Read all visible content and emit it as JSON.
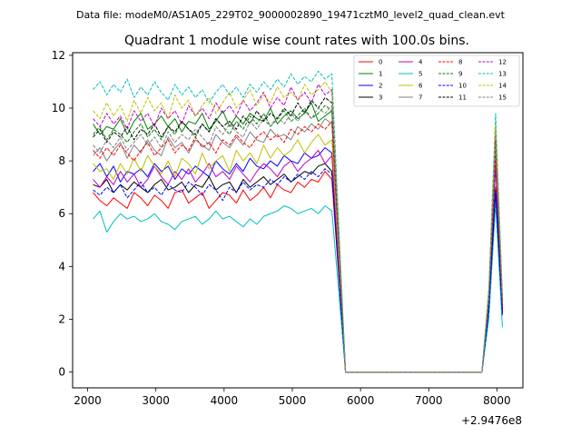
{
  "figure": {
    "suptitle": "Data file: modeM0/AS1A05_229T02_9000002890_19471cztM0_level2_quad_clean.evt"
  },
  "chart_data": {
    "type": "line",
    "title": "Quadrant 1 module wise count rates with 100.0s bins.",
    "xlabel": "",
    "ylabel": "",
    "x_offset_text": "+2.9476e8",
    "xlim": [
      1780,
      8380
    ],
    "ylim": [
      -0.6,
      12.1
    ],
    "x_ticks": [
      2000,
      3000,
      4000,
      5000,
      6000,
      7000,
      8000
    ],
    "y_ticks": [
      0,
      2,
      4,
      6,
      8,
      10,
      12
    ],
    "x_tick_labels": [
      "2000",
      "3000",
      "4000",
      "5000",
      "6000",
      "7000",
      "8000"
    ],
    "y_tick_labels": [
      "0",
      "2",
      "4",
      "6",
      "8",
      "10",
      "12"
    ],
    "grid": false,
    "legend_position": "upper right",
    "x_base": [
      2080,
      2180,
      2280,
      2380,
      2480,
      2580,
      2680,
      2780,
      2880,
      2980,
      3080,
      3180,
      3280,
      3380,
      3480,
      3580,
      3680,
      3780,
      3880,
      3980,
      4080,
      4180,
      4280,
      4380,
      4480,
      4580,
      4680,
      4780,
      4880,
      4980,
      5080,
      5180,
      5280,
      5380,
      5480,
      5580
    ],
    "x_gap": [
      5780,
      5880,
      5980,
      6080,
      6180,
      6280,
      6380,
      6480,
      6580,
      6680,
      6780,
      6880,
      6980,
      7080,
      7180,
      7280,
      7380,
      7480,
      7580,
      7680,
      7780
    ],
    "x_end": [
      7880,
      7980,
      8080
    ],
    "series": [
      {
        "name": "0",
        "color": "#ff0000",
        "dash": "solid",
        "values": [
          6.8,
          6.5,
          6.3,
          6.6,
          6.4,
          6.2,
          6.8,
          6.6,
          6.3,
          6.7,
          6.5,
          6.2,
          6.8,
          6.9,
          6.4,
          6.6,
          6.8,
          6.2,
          6.5,
          6.8,
          6.7,
          6.4,
          6.9,
          6.5,
          6.7,
          7.0,
          6.6,
          7.1,
          6.9,
          6.8,
          7.2,
          7.0,
          7.3,
          7.2,
          7.6,
          7.3
        ],
        "end": [
          2.5,
          7.0,
          2.3
        ]
      },
      {
        "name": "1",
        "color": "#008000",
        "dash": "solid",
        "values": [
          9.4,
          9.0,
          9.3,
          9.2,
          9.6,
          9.0,
          9.5,
          9.8,
          9.2,
          9.4,
          9.7,
          9.3,
          9.6,
          9.1,
          9.5,
          9.4,
          9.8,
          9.2,
          9.5,
          9.9,
          9.3,
          9.7,
          9.4,
          9.8,
          9.6,
          9.5,
          10.0,
          9.4,
          9.7,
          9.9,
          9.6,
          9.8,
          10.2,
          9.5,
          9.7,
          9.9
        ],
        "end": [
          2.8,
          8.5,
          2.6
        ]
      },
      {
        "name": "2",
        "color": "#0000ff",
        "dash": "solid",
        "values": [
          7.6,
          7.9,
          7.4,
          7.8,
          7.2,
          7.6,
          7.5,
          7.7,
          7.4,
          7.9,
          7.6,
          7.8,
          7.3,
          7.7,
          7.5,
          7.8,
          7.6,
          7.4,
          8.0,
          7.7,
          7.5,
          7.9,
          7.6,
          8.1,
          7.8,
          7.7,
          8.0,
          7.8,
          8.2,
          8.0,
          7.9,
          8.3,
          8.1,
          8.2,
          8.5,
          8.3
        ],
        "end": [
          2.6,
          7.8,
          2.4
        ]
      },
      {
        "name": "3",
        "color": "#000000",
        "dash": "solid",
        "values": [
          7.1,
          7.0,
          7.3,
          6.8,
          7.1,
          6.9,
          7.2,
          7.0,
          6.8,
          7.1,
          7.3,
          6.9,
          7.0,
          7.2,
          6.8,
          7.1,
          7.0,
          7.4,
          6.9,
          7.1,
          7.2,
          6.8,
          7.3,
          7.0,
          7.2,
          7.4,
          7.1,
          7.3,
          7.5,
          7.2,
          7.4,
          7.6,
          7.5,
          7.8,
          7.9,
          7.6
        ],
        "end": [
          2.4,
          6.9,
          2.2
        ]
      },
      {
        "name": "4",
        "color": "#bf00bf",
        "dash": "solid",
        "values": [
          7.3,
          7.0,
          7.4,
          7.1,
          7.6,
          7.2,
          7.5,
          7.0,
          7.3,
          7.8,
          7.4,
          7.1,
          7.6,
          7.3,
          7.7,
          7.2,
          7.5,
          7.9,
          7.4,
          7.6,
          7.3,
          7.8,
          7.5,
          7.2,
          7.6,
          7.9,
          7.7,
          7.4,
          7.8,
          8.0,
          7.6,
          7.9,
          8.1,
          8.4,
          7.9,
          8.2
        ],
        "end": [
          2.7,
          8.0,
          2.5
        ]
      },
      {
        "name": "5",
        "color": "#00bfbf",
        "dash": "solid",
        "values": [
          5.8,
          6.1,
          5.3,
          5.7,
          6.0,
          5.8,
          5.9,
          5.7,
          5.8,
          6.0,
          5.7,
          5.6,
          5.4,
          5.7,
          5.8,
          5.9,
          5.6,
          5.8,
          6.1,
          5.8,
          5.9,
          5.7,
          5.5,
          5.8,
          5.6,
          5.9,
          6.0,
          6.1,
          6.3,
          6.2,
          6.0,
          6.1,
          6.2,
          6.0,
          6.3,
          6.1
        ],
        "end": [
          2.0,
          6.4,
          1.7
        ]
      },
      {
        "name": "6",
        "color": "#bfbf00",
        "dash": "solid",
        "values": [
          7.9,
          7.6,
          7.7,
          7.3,
          7.9,
          7.5,
          8.1,
          7.6,
          8.2,
          7.8,
          7.5,
          8.0,
          7.4,
          8.1,
          7.9,
          7.5,
          8.3,
          7.7,
          8.0,
          8.2,
          7.6,
          8.4,
          8.0,
          8.3,
          7.9,
          8.6,
          8.1,
          8.5,
          8.2,
          8.4,
          8.8,
          8.3,
          8.7,
          9.0,
          8.6,
          8.8
        ],
        "end": [
          3.0,
          8.9,
          2.7
        ]
      },
      {
        "name": "7",
        "color": "#808080",
        "dash": "solid",
        "values": [
          8.2,
          8.5,
          8.0,
          8.4,
          8.7,
          8.1,
          8.6,
          8.3,
          8.8,
          8.4,
          8.2,
          8.9,
          8.5,
          8.7,
          8.3,
          8.8,
          8.6,
          8.4,
          9.0,
          8.7,
          8.5,
          8.9,
          8.6,
          9.1,
          8.8,
          8.7,
          9.2,
          8.9,
          9.0,
          8.8,
          9.3,
          9.1,
          9.4,
          9.2,
          9.6,
          9.4
        ],
        "end": [
          2.9,
          8.7,
          2.6
        ]
      },
      {
        "name": "8",
        "color": "#ff0000",
        "dash": "dashed",
        "values": [
          8.4,
          8.1,
          8.5,
          8.2,
          8.6,
          8.3,
          8.0,
          8.4,
          8.7,
          8.2,
          8.5,
          8.8,
          8.3,
          8.6,
          8.4,
          8.9,
          8.5,
          8.7,
          8.3,
          8.8,
          8.6,
          9.0,
          8.7,
          8.5,
          8.9,
          9.1,
          8.8,
          9.0,
          8.7,
          9.2,
          9.0,
          9.3,
          9.1,
          9.4,
          9.2,
          9.5
        ],
        "end": [
          2.7,
          8.2,
          2.5
        ]
      },
      {
        "name": "9",
        "color": "#008000",
        "dash": "dashed",
        "values": [
          9.0,
          9.3,
          8.8,
          9.2,
          9.0,
          8.7,
          9.1,
          9.4,
          8.9,
          9.2,
          8.8,
          9.3,
          9.0,
          9.5,
          9.2,
          8.9,
          9.4,
          9.1,
          9.6,
          9.3,
          9.0,
          9.5,
          9.2,
          9.7,
          9.4,
          9.8,
          9.3,
          9.6,
          9.9,
          9.5,
          9.7,
          10.0,
          9.6,
          9.8,
          10.1,
          9.9
        ],
        "end": [
          2.8,
          8.6,
          2.6
        ]
      },
      {
        "name": "10",
        "color": "#0000ff",
        "dash": "dashed",
        "values": [
          6.9,
          6.7,
          7.0,
          6.8,
          7.1,
          6.6,
          6.9,
          7.2,
          6.8,
          7.0,
          6.7,
          7.1,
          6.9,
          6.8,
          7.2,
          7.0,
          6.7,
          7.1,
          6.9,
          6.5,
          7.0,
          6.8,
          7.2,
          6.9,
          7.1,
          7.0,
          7.3,
          7.1,
          7.4,
          7.2,
          7.5,
          7.3,
          7.6,
          7.4,
          7.7,
          7.5
        ],
        "end": [
          2.3,
          6.8,
          2.1
        ]
      },
      {
        "name": "11",
        "color": "#000000",
        "dash": "dashed",
        "values": [
          8.9,
          9.2,
          8.7,
          9.1,
          8.9,
          9.3,
          8.8,
          9.2,
          9.0,
          9.4,
          8.9,
          9.3,
          9.1,
          9.5,
          9.2,
          9.0,
          9.4,
          9.1,
          9.6,
          9.3,
          9.5,
          9.2,
          9.7,
          9.4,
          9.9,
          9.5,
          9.8,
          9.6,
          10.0,
          9.7,
          10.2,
          9.8,
          10.3,
          10.0,
          10.4,
          10.2
        ],
        "end": [
          2.9,
          8.8,
          2.7
        ]
      },
      {
        "name": "12",
        "color": "#bf00bf",
        "dash": "dashed",
        "values": [
          9.6,
          9.3,
          9.8,
          9.4,
          9.7,
          9.2,
          9.9,
          9.5,
          9.8,
          9.3,
          10.0,
          9.6,
          9.9,
          9.4,
          10.1,
          9.7,
          10.0,
          9.6,
          10.2,
          9.8,
          10.1,
          9.7,
          10.3,
          9.9,
          10.2,
          10.6,
          10.0,
          10.4,
          10.1,
          10.8,
          10.3,
          10.6,
          10.2,
          10.9,
          10.5,
          10.7
        ],
        "end": [
          3.0,
          9.2,
          2.8
        ]
      },
      {
        "name": "13",
        "color": "#00bfbf",
        "dash": "dashed",
        "values": [
          10.7,
          11.0,
          10.5,
          10.9,
          10.6,
          11.1,
          10.4,
          10.8,
          10.5,
          11.0,
          10.6,
          10.3,
          10.9,
          10.5,
          10.8,
          10.4,
          10.7,
          10.2,
          10.6,
          10.9,
          10.5,
          10.8,
          10.4,
          10.9,
          10.6,
          11.0,
          10.7,
          11.1,
          10.8,
          11.3,
          10.9,
          11.2,
          11.0,
          11.4,
          11.1,
          11.3
        ],
        "end": [
          3.2,
          9.8,
          2.9
        ]
      },
      {
        "name": "14",
        "color": "#bfbf00",
        "dash": "dashed",
        "values": [
          9.9,
          9.6,
          10.2,
          9.7,
          10.1,
          9.5,
          10.3,
          9.8,
          10.4,
          9.9,
          10.2,
          9.6,
          10.5,
          10.0,
          10.3,
          9.7,
          10.1,
          10.4,
          9.8,
          10.2,
          10.6,
          10.0,
          10.3,
          10.7,
          10.1,
          10.5,
          10.2,
          10.8,
          10.4,
          10.6,
          10.3,
          10.9,
          10.5,
          10.7,
          11.0,
          10.6
        ],
        "end": [
          3.1,
          9.4,
          2.8
        ]
      },
      {
        "name": "15",
        "color": "#808080",
        "dash": "dashed",
        "values": [
          8.6,
          8.3,
          8.8,
          8.5,
          8.9,
          8.4,
          8.7,
          9.0,
          8.6,
          8.9,
          8.5,
          9.1,
          8.7,
          9.0,
          8.8,
          9.2,
          8.9,
          8.6,
          9.3,
          9.0,
          9.4,
          9.1,
          8.9,
          9.5,
          9.2,
          9.6,
          9.3,
          9.7,
          9.4,
          9.8,
          9.5,
          9.9,
          9.6,
          10.0,
          9.8,
          10.1
        ],
        "end": [
          2.8,
          8.6,
          2.6
        ]
      }
    ]
  }
}
